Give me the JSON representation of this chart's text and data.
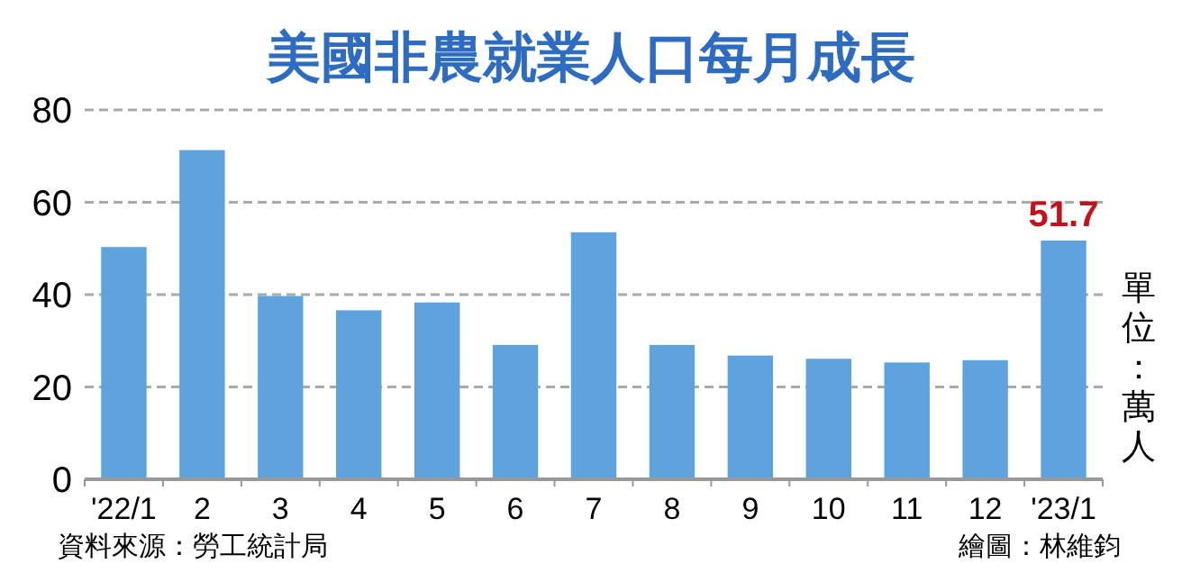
{
  "chart_data": {
    "type": "bar",
    "title": "美國非農就業人口每月成長",
    "ylabel": "單位：萬人",
    "annotations": [
      "資料來源：勞工統計局",
      "繪圖：林維鈞"
    ],
    "categories": [
      "'22/1",
      "2",
      "3",
      "4",
      "5",
      "6",
      "7",
      "8",
      "9",
      "10",
      "11",
      "12",
      "'23/1"
    ],
    "values": [
      50.3,
      71.3,
      39.7,
      36.6,
      38.3,
      29.1,
      53.5,
      29.1,
      26.8,
      26.1,
      25.3,
      25.8,
      51.7
    ],
    "value_labels": [
      null,
      null,
      null,
      null,
      null,
      null,
      null,
      null,
      null,
      null,
      null,
      null,
      "51.7"
    ],
    "color": "#5ea3de",
    "ylim": [
      0,
      80
    ],
    "yticks": [
      0,
      20,
      40,
      60,
      80
    ],
    "grid": "y"
  }
}
